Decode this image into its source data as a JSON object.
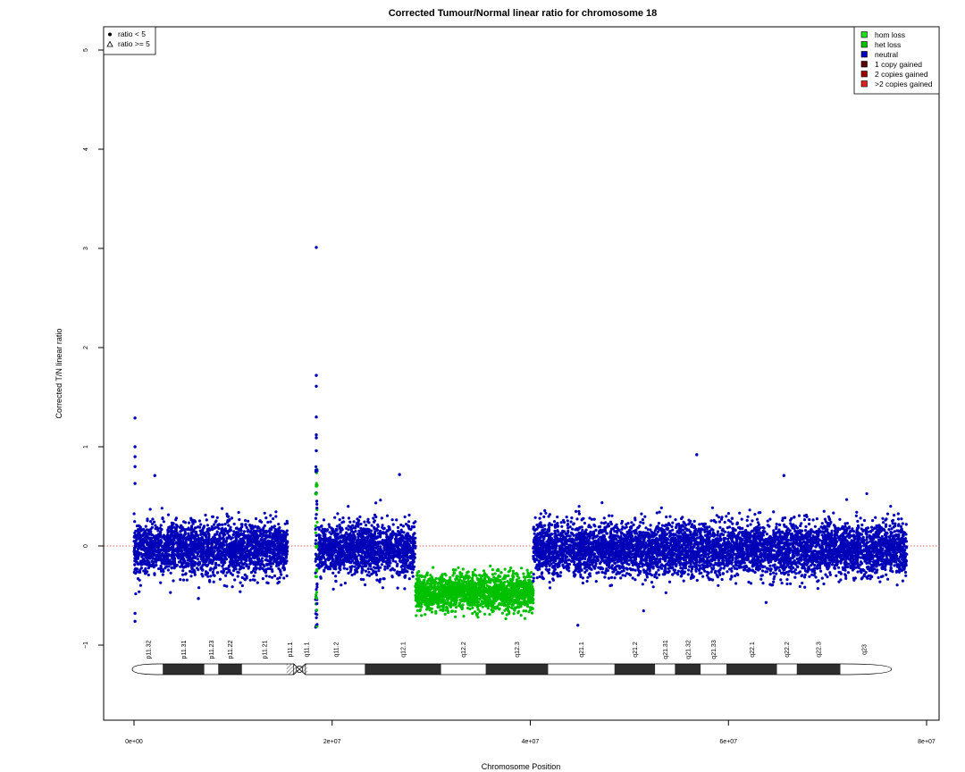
{
  "chart_data": {
    "type": "scatter",
    "title": "Corrected Tumour/Normal linear ratio for chromosome  18",
    "xlabel": "Chromosome Position",
    "ylabel": "Corrected T/N linear ratio",
    "xlim": [
      0,
      80000000
    ],
    "ylim": [
      -1.5,
      5.0
    ],
    "x_ticks": [
      0,
      20000000,
      40000000,
      60000000,
      80000000
    ],
    "x_tick_labels": [
      "0e+00",
      "2e+07",
      "4e+07",
      "6e+07",
      "8e+07"
    ],
    "y_ticks": [
      -1,
      0,
      1,
      2,
      3,
      4,
      5
    ],
    "y_tick_labels": [
      "−1",
      "0",
      "1",
      "2",
      "3",
      "4",
      "5"
    ],
    "reference_line": {
      "y": 0,
      "color": "#e03030",
      "style": "dotted"
    },
    "colors": {
      "hom_loss": "#22dd22",
      "het_loss": "#00c000",
      "neutral": "#0000b8",
      "gain1": "#5a0000",
      "gain2": "#9b0000",
      "gain3": "#e02020"
    },
    "segments": [
      {
        "class": "neutral",
        "x_start": 0,
        "x_end": 15500000,
        "mean": -0.03,
        "spread": 0.13
      },
      {
        "class": "neutral",
        "x_start": 18600000,
        "x_end": 28400000,
        "mean": -0.03,
        "spread": 0.13
      },
      {
        "class": "het_loss",
        "x_start": 28400000,
        "x_end": 40300000,
        "mean": -0.47,
        "spread": 0.09
      },
      {
        "class": "neutral",
        "x_start": 40300000,
        "x_end": 78000000,
        "mean": -0.03,
        "spread": 0.13
      }
    ],
    "outliers": [
      {
        "x": 100000,
        "y": 1.29
      },
      {
        "x": 100000,
        "y": 1.0
      },
      {
        "x": 100000,
        "y": 0.9
      },
      {
        "x": 100000,
        "y": 0.8
      },
      {
        "x": 100000,
        "y": 0.63
      },
      {
        "x": 100000,
        "y": -0.76
      },
      {
        "x": 100000,
        "y": -0.68
      },
      {
        "x": 18400000,
        "y": 3.01
      },
      {
        "x": 18400000,
        "y": 1.72
      },
      {
        "x": 18400000,
        "y": 1.61
      },
      {
        "x": 18400000,
        "y": 1.3
      },
      {
        "x": 18400000,
        "y": 1.12
      },
      {
        "x": 18400000,
        "y": 1.09
      },
      {
        "x": 18400000,
        "y": 0.96
      },
      {
        "x": 56800000,
        "y": 0.92
      },
      {
        "x": 44800000,
        "y": -0.8
      },
      {
        "x": 26800000,
        "y": 0.72
      },
      {
        "x": 2100000,
        "y": 0.71
      },
      {
        "x": 65600000,
        "y": 0.71
      },
      {
        "x": 63800000,
        "y": -0.57
      },
      {
        "x": 6500000,
        "y": -0.53
      }
    ],
    "legend_symbols": {
      "position": "top-left",
      "entries": [
        {
          "symbol": "circle",
          "label": "ratio < 5"
        },
        {
          "symbol": "triangle",
          "label": "ratio >= 5"
        }
      ]
    },
    "legend_classes": {
      "position": "top-right",
      "entries": [
        {
          "label": "hom loss",
          "color": "#22dd22"
        },
        {
          "label": "het loss",
          "color": "#00c000"
        },
        {
          "label": "neutral",
          "color": "#0000b8"
        },
        {
          "label": "1 copy gained",
          "color": "#5a0000"
        },
        {
          "label": "2 copies gained",
          "color": "#9b0000"
        },
        {
          "label": ">2 copies gained",
          "color": "#e02020"
        }
      ]
    },
    "ideogram": {
      "bands": [
        {
          "name": "p11.32",
          "start": 0,
          "end": 2900000,
          "stain": "gneg"
        },
        {
          "name": "p11.31",
          "start": 2900000,
          "end": 7100000,
          "stain": "gpos"
        },
        {
          "name": "p11.23",
          "start": 7100000,
          "end": 8500000,
          "stain": "gneg"
        },
        {
          "name": "p11.22",
          "start": 8500000,
          "end": 10900000,
          "stain": "gpos"
        },
        {
          "name": "p11.21",
          "start": 10900000,
          "end": 15400000,
          "stain": "gneg"
        },
        {
          "name": "p11.1",
          "start": 15400000,
          "end": 16100000,
          "stain": "gvar"
        },
        {
          "name": "cen",
          "start": 16100000,
          "end": 17300000,
          "stain": "acen"
        },
        {
          "name": "q11.1",
          "start": 17300000,
          "end": 17500000,
          "stain": "gvar"
        },
        {
          "name": "q11.2",
          "start": 17500000,
          "end": 23300000,
          "stain": "gneg"
        },
        {
          "name": "q12.1",
          "start": 23300000,
          "end": 31000000,
          "stain": "gpos"
        },
        {
          "name": "q12.2",
          "start": 31000000,
          "end": 35500000,
          "stain": "gneg"
        },
        {
          "name": "q12.3",
          "start": 35500000,
          "end": 41800000,
          "stain": "gpos"
        },
        {
          "name": "q21.1",
          "start": 41800000,
          "end": 48500000,
          "stain": "gneg"
        },
        {
          "name": "q21.2",
          "start": 48500000,
          "end": 52600000,
          "stain": "gpos"
        },
        {
          "name": "q21.31",
          "start": 52600000,
          "end": 54600000,
          "stain": "gneg"
        },
        {
          "name": "q21.32",
          "start": 54600000,
          "end": 57200000,
          "stain": "gpos"
        },
        {
          "name": "q21.33",
          "start": 57200000,
          "end": 59800000,
          "stain": "gneg"
        },
        {
          "name": "q22.1",
          "start": 59800000,
          "end": 64900000,
          "stain": "gpos"
        },
        {
          "name": "q22.2",
          "start": 64900000,
          "end": 66900000,
          "stain": "gneg"
        },
        {
          "name": "q22.3",
          "start": 66900000,
          "end": 71300000,
          "stain": "gpos"
        },
        {
          "name": "q23",
          "start": 71300000,
          "end": 76100000,
          "stain": "gneg"
        }
      ]
    }
  }
}
